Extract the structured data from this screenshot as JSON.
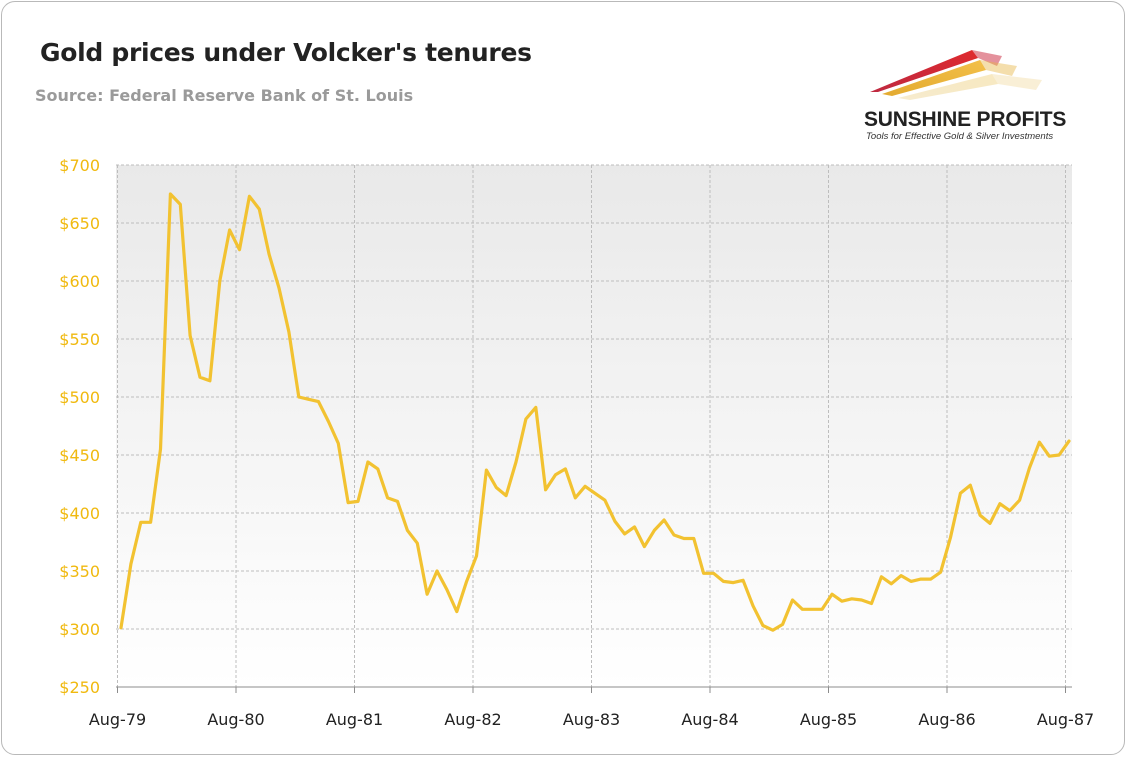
{
  "title": "Gold prices under Volcker's tenures",
  "subtitle": "Source: Federal Reserve Bank of St. Louis",
  "logo": {
    "name": "SUNSHINE PROFITS",
    "tagline": "Tools for Effective Gold & Silver Investments"
  },
  "colors": {
    "line": "#f2c231",
    "tick_label": "#f0b90f",
    "grid": "#bdbdbd",
    "text": "#222222",
    "subtitle": "#9a9a9a"
  },
  "chart_data": {
    "type": "line",
    "title": "Gold prices under Volcker's tenures",
    "ylim": [
      250,
      700
    ],
    "y_ticks": [
      250,
      300,
      350,
      400,
      450,
      500,
      550,
      600,
      650,
      700
    ],
    "y_tick_labels": [
      "$250",
      "$300",
      "$350",
      "$400",
      "$450",
      "$500",
      "$550",
      "$600",
      "$650",
      "$700"
    ],
    "x_tick_labels": [
      "Aug-79",
      "Aug-80",
      "Aug-81",
      "Aug-82",
      "Aug-83",
      "Aug-84",
      "Aug-85",
      "Aug-86",
      "Aug-87"
    ],
    "grid": true,
    "series": [
      {
        "start": "Aug-79",
        "frequency": "monthly",
        "values": [
          301,
          356,
          392,
          392,
          455,
          675,
          666,
          553,
          517,
          514,
          600,
          644,
          627,
          673,
          662,
          623,
          594,
          556,
          500,
          498,
          496,
          479,
          460,
          409,
          410,
          444,
          438,
          413,
          410,
          385,
          374,
          330,
          350,
          334,
          315,
          341,
          363,
          437,
          422,
          415,
          444,
          481,
          491,
          420,
          433,
          438,
          413,
          423,
          417,
          411,
          393,
          382,
          388,
          371,
          385,
          394,
          381,
          378,
          378,
          348,
          348,
          341,
          340,
          342,
          320,
          303,
          299,
          304,
          325,
          317,
          317,
          317,
          330,
          324,
          326,
          325,
          322,
          345,
          339,
          346,
          341,
          343,
          343,
          349,
          379,
          417,
          424,
          398,
          391,
          408,
          402,
          411,
          439,
          461,
          449,
          450,
          462
        ]
      }
    ]
  }
}
